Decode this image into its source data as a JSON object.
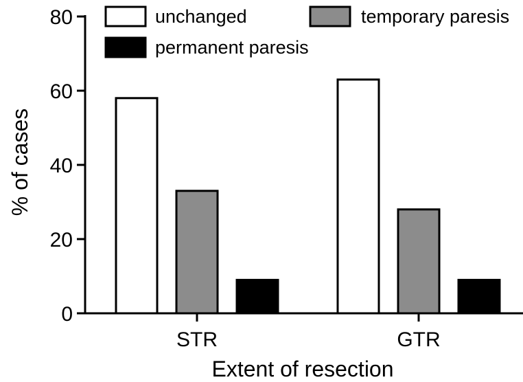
{
  "chart_data": {
    "type": "bar",
    "categories": [
      "STR",
      "GTR"
    ],
    "series": [
      {
        "name": "unchanged",
        "values": [
          58,
          63
        ],
        "color": "#ffffff"
      },
      {
        "name": "temporary paresis",
        "values": [
          33,
          28
        ],
        "color": "#8c8c8c"
      },
      {
        "name": "permanent paresis",
        "values": [
          9,
          9
        ],
        "color": "#000000"
      }
    ],
    "title": "",
    "xlabel": "Extent of resection",
    "ylabel": "% of cases",
    "ylim": [
      0,
      80
    ],
    "yticks": [
      0,
      20,
      40,
      60,
      80
    ],
    "grid": false,
    "legend_position": "top"
  }
}
